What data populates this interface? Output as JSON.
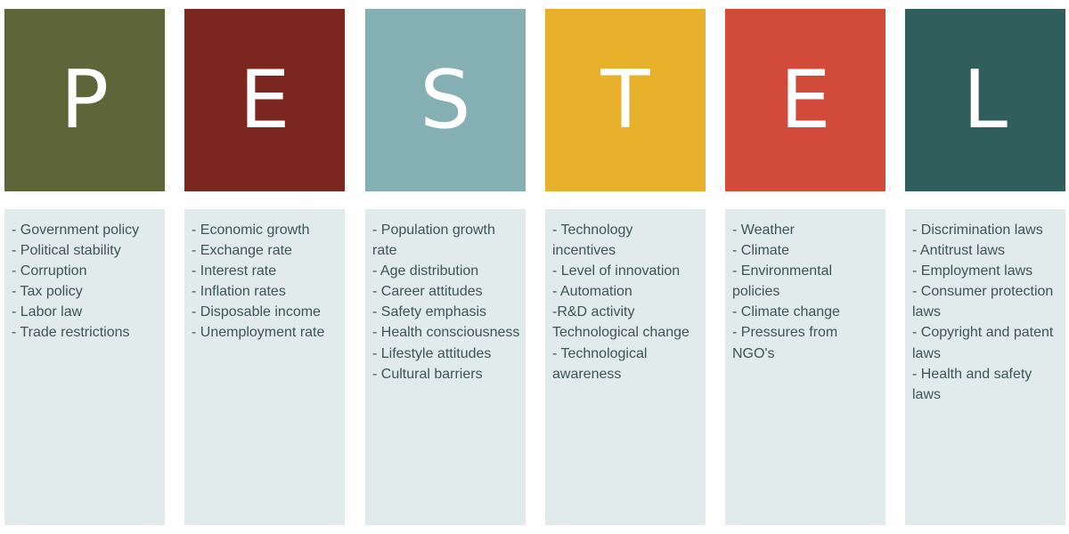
{
  "columns": [
    {
      "letter": "P",
      "color": "#5e6639",
      "items": [
        "- Government policy",
        "- Political stability",
        "- Corruption",
        "- Tax policy",
        "- Labor law",
        "- Trade restrictions"
      ]
    },
    {
      "letter": "E",
      "color": "#7c2620",
      "items": [
        "- Economic growth",
        "- Exchange rate",
        "- Interest rate",
        "- Inflation rates",
        "- Disposable income",
        "- Unemployment rate"
      ]
    },
    {
      "letter": "S",
      "color": "#84b0b4",
      "items": [
        "- Population growth rate",
        "- Age distribution",
        "- Career attitudes",
        "- Safety emphasis",
        "- Health consciousness",
        "- Lifestyle attitudes",
        "- Cultural barriers"
      ]
    },
    {
      "letter": "T",
      "color": "#e7b12c",
      "items": [
        "- Technology incentives",
        "- Level of innovation",
        "- Automation",
        "-R&D activity Technological change",
        "- Technological awareness"
      ]
    },
    {
      "letter": "E",
      "color": "#d24a39",
      "items": [
        "- Weather",
        "- Climate",
        "- Environmental policies",
        "- Climate change",
        "- Pressures from NGO's"
      ]
    },
    {
      "letter": "L",
      "color": "#2f5e5c",
      "items": [
        "- Discrimination laws",
        "- Antitrust laws",
        "- Employment laws",
        "- Consumer protection laws",
        "- Copyright and patent laws",
        "- Health and safety laws"
      ]
    }
  ],
  "panel_color": "#e1ebec",
  "text_color": "#3f5457"
}
